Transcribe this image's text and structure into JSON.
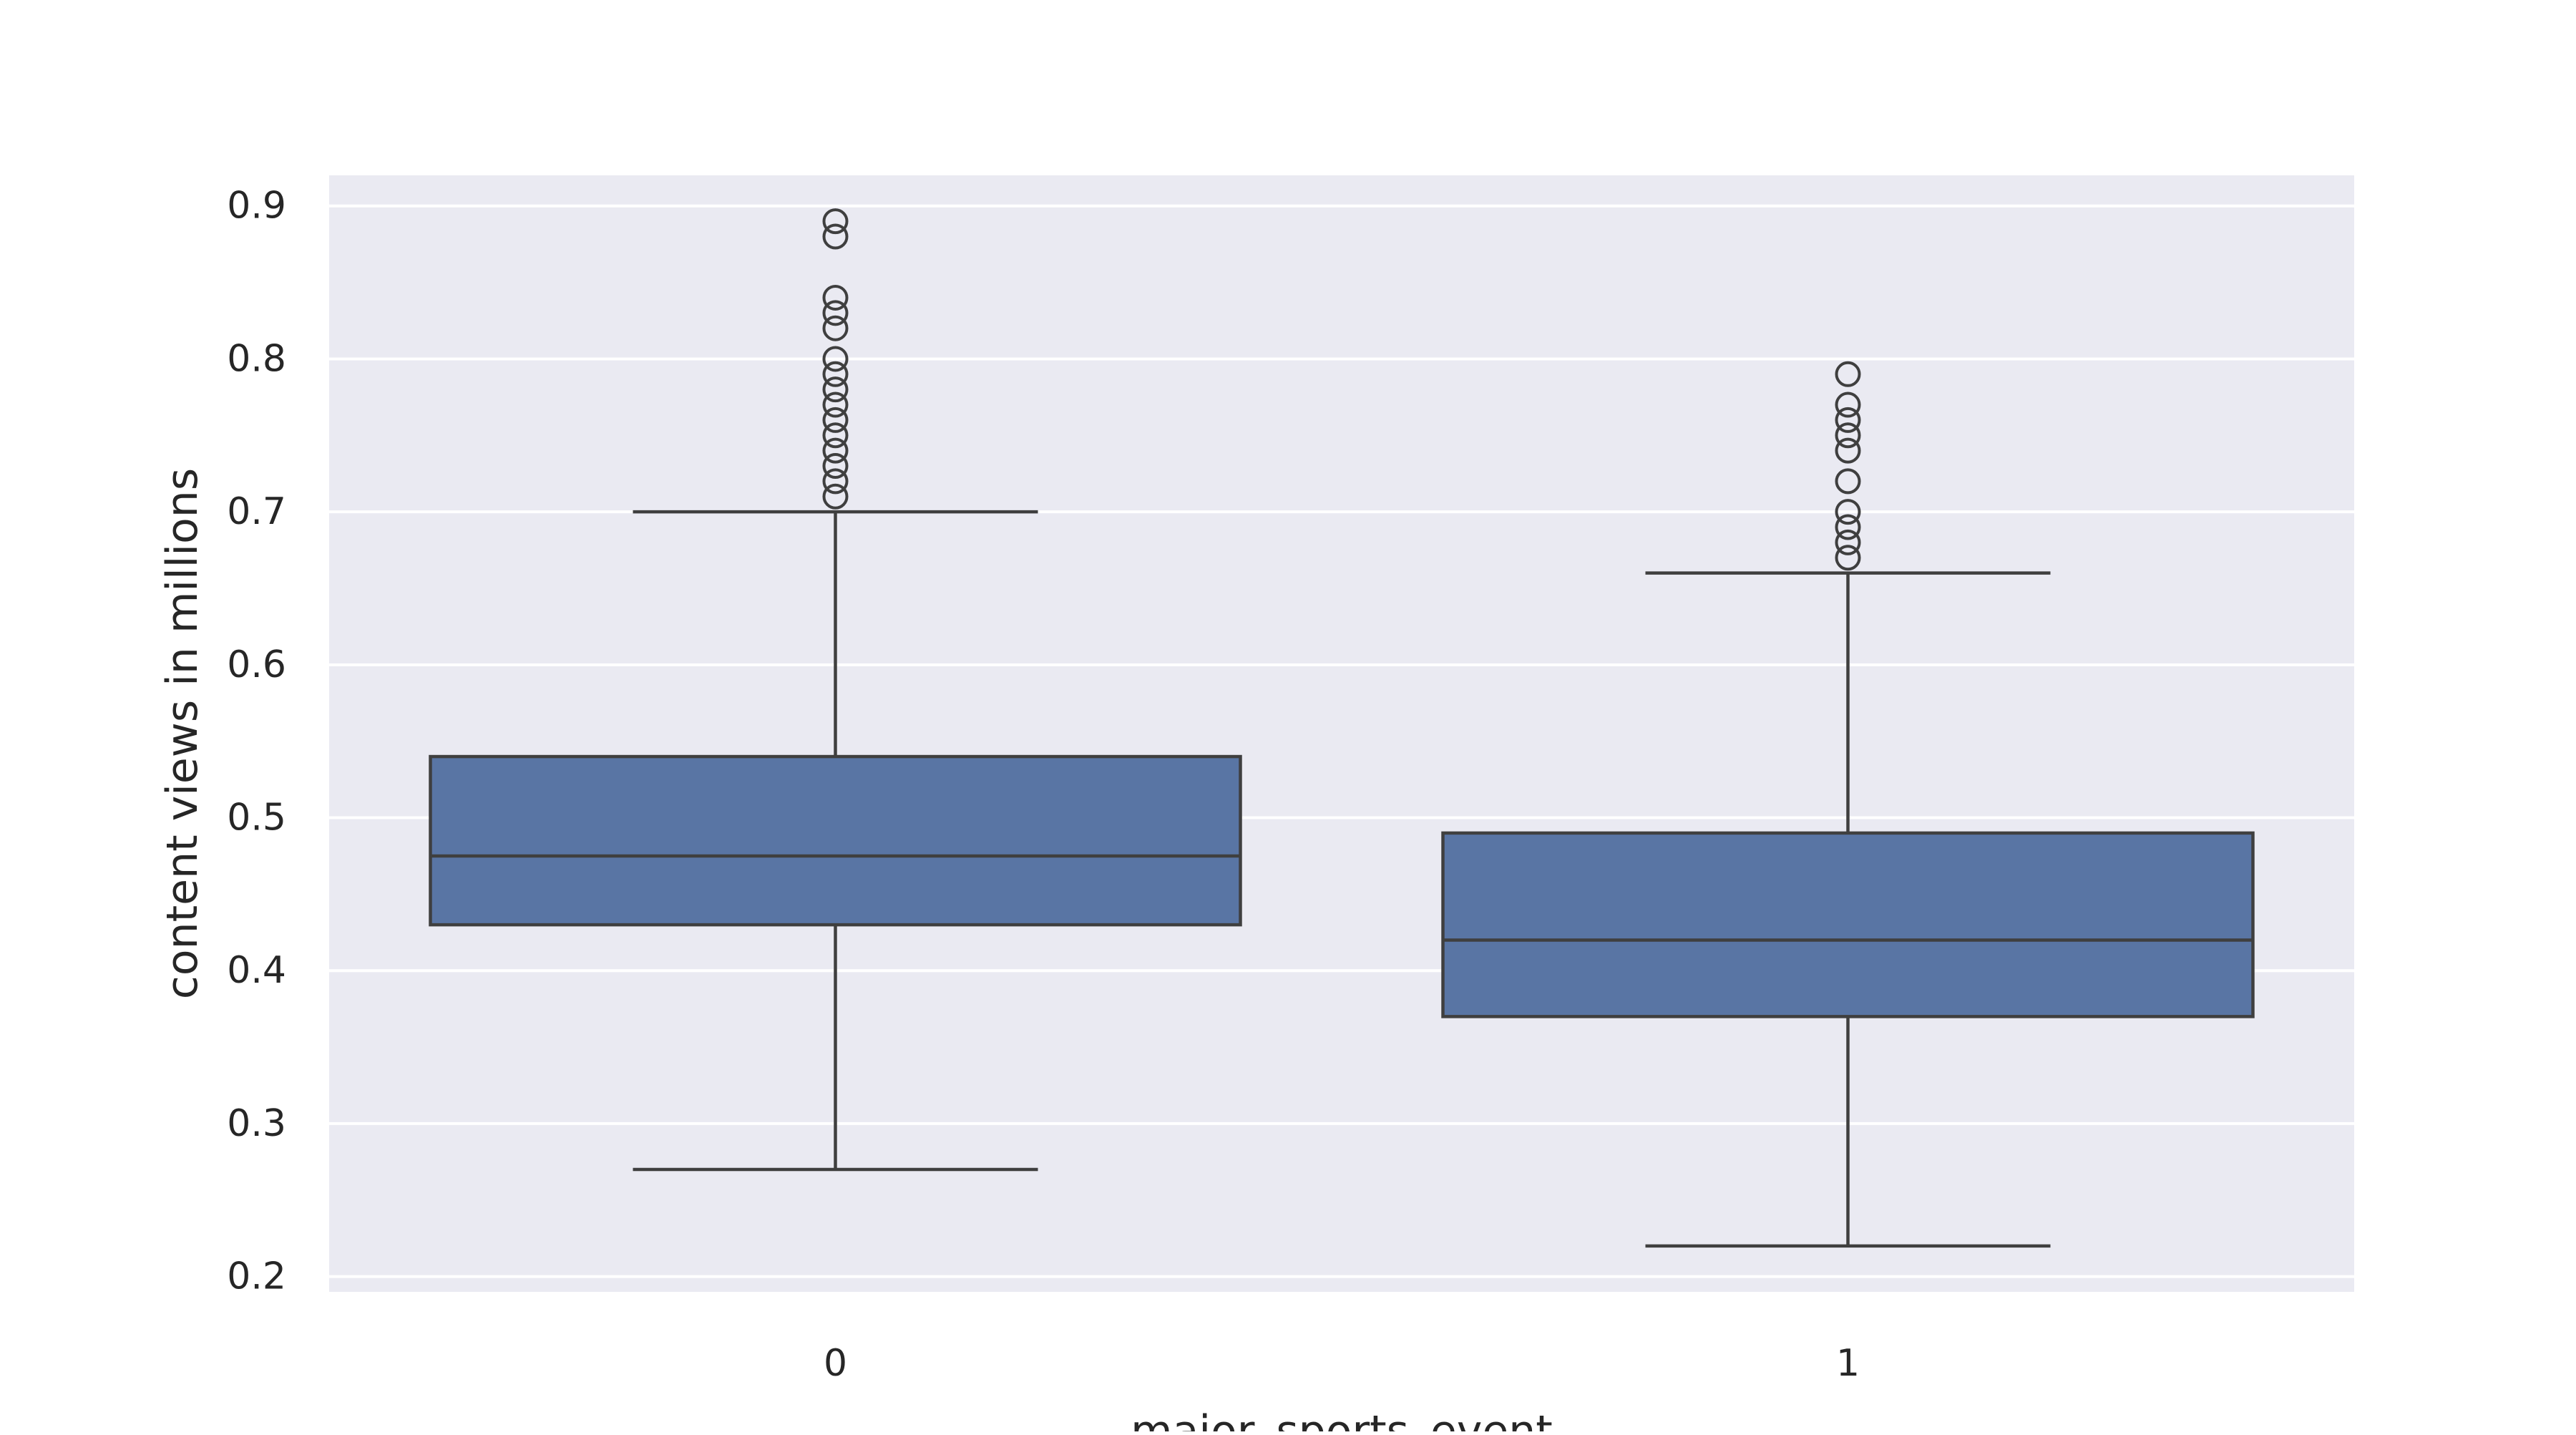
{
  "chart_data": {
    "type": "box",
    "xlabel": "major_sports_event",
    "ylabel": "content views in millions",
    "categories": [
      "0",
      "1"
    ],
    "ylim": [
      0.19,
      0.92
    ],
    "yticks": [
      "0.2",
      "0.3",
      "0.4",
      "0.5",
      "0.6",
      "0.7",
      "0.8",
      "0.9"
    ],
    "grid": true,
    "boxes": [
      {
        "category": "0",
        "whisker_low": 0.27,
        "q1": 0.43,
        "median": 0.475,
        "q3": 0.54,
        "whisker_high": 0.7,
        "outliers": [
          0.71,
          0.72,
          0.73,
          0.74,
          0.75,
          0.76,
          0.77,
          0.78,
          0.79,
          0.8,
          0.82,
          0.83,
          0.84,
          0.88,
          0.89
        ]
      },
      {
        "category": "1",
        "whisker_low": 0.22,
        "q1": 0.37,
        "median": 0.42,
        "q3": 0.49,
        "whisker_high": 0.66,
        "outliers": [
          0.67,
          0.68,
          0.69,
          0.7,
          0.72,
          0.74,
          0.75,
          0.76,
          0.77,
          0.79
        ]
      }
    ],
    "colors": {
      "plot_background": "#EAEAF2",
      "grid": "#FFFFFF",
      "box_fill": "#5975A4",
      "line": "#3F3F3F",
      "text": "#262626"
    }
  }
}
